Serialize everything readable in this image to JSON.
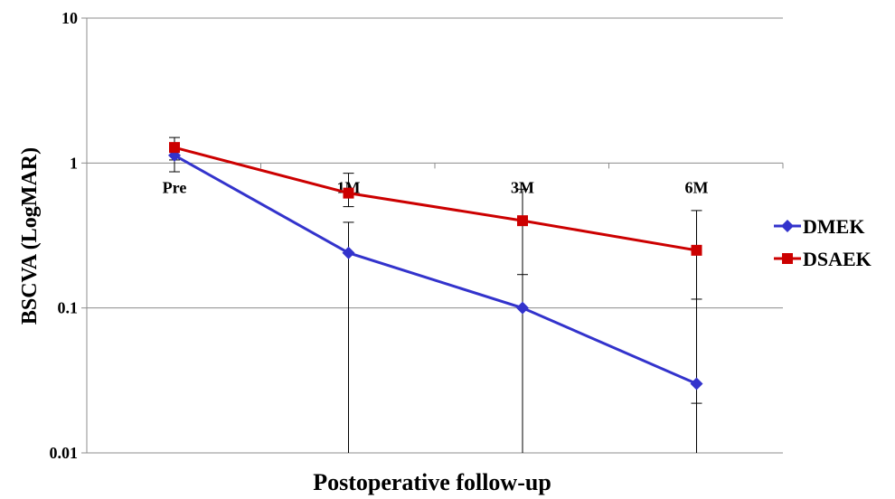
{
  "chart_data": {
    "type": "line",
    "title": "",
    "xlabel": "Postoperative follow-up",
    "ylabel": "BSCVA (LogMAR)",
    "y_scale": "log",
    "ylim": [
      0.01,
      10
    ],
    "y_ticks": [
      {
        "value": 10,
        "label": "10"
      },
      {
        "value": 1,
        "label": "1"
      },
      {
        "value": 0.1,
        "label": "0.1"
      },
      {
        "value": 0.01,
        "label": "0.01"
      }
    ],
    "categories": [
      "Pre",
      "1M",
      "3M",
      "6M"
    ],
    "grid": "horizontal major lines",
    "legend_position": "right",
    "series": [
      {
        "name": "DMEK",
        "color": "#3333cc",
        "marker": "diamond",
        "values": [
          1.13,
          0.24,
          0.1,
          0.03
        ],
        "error_low": [
          0.87,
          0.0,
          0.0,
          0.022
        ],
        "error_high": [
          1.35,
          0.39,
          0.17,
          0.115
        ]
      },
      {
        "name": "DSAEK",
        "color": "#cc0000",
        "marker": "square",
        "values": [
          1.28,
          0.62,
          0.4,
          0.25
        ],
        "error_low": [
          1.05,
          0.5,
          0.0,
          0.0
        ],
        "error_high": [
          1.5,
          0.85,
          0.66,
          0.47
        ]
      }
    ]
  }
}
